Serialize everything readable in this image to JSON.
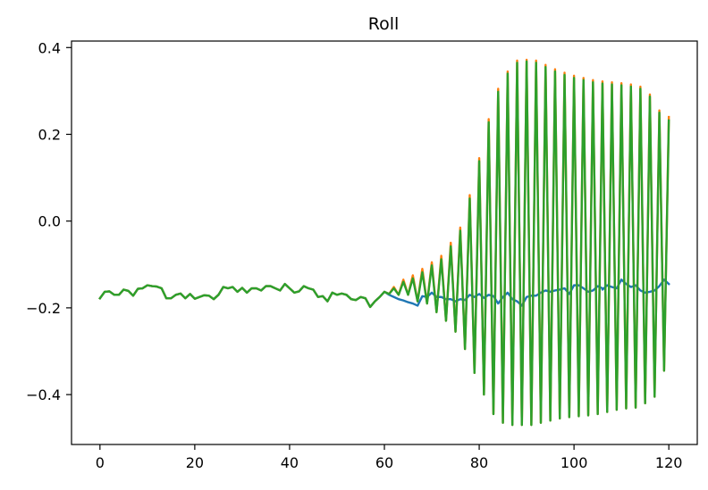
{
  "chart_data": {
    "type": "line",
    "title": "Roll",
    "xlabel": "",
    "ylabel": "",
    "xlim": [
      -6,
      126
    ],
    "ylim": [
      -0.515,
      0.415
    ],
    "xticks": [
      0,
      20,
      40,
      60,
      80,
      100,
      120
    ],
    "xtick_labels": [
      "0",
      "20",
      "40",
      "60",
      "80",
      "100",
      "120"
    ],
    "yticks": [
      -0.4,
      -0.2,
      0.0,
      0.2,
      0.4
    ],
    "ytick_labels": [
      "−0.4",
      "−0.2",
      "0.0",
      "0.2",
      "0.4"
    ],
    "grid": false,
    "legend": "none",
    "series": [
      {
        "color": "#1f77b4",
        "x": [
          0,
          1,
          2,
          3,
          4,
          5,
          6,
          7,
          8,
          9,
          10,
          11,
          12,
          13,
          14,
          15,
          16,
          17,
          18,
          19,
          20,
          21,
          22,
          23,
          24,
          25,
          26,
          27,
          28,
          29,
          30,
          31,
          32,
          33,
          34,
          35,
          36,
          37,
          38,
          39,
          40,
          41,
          42,
          43,
          44,
          45,
          46,
          47,
          48,
          49,
          50,
          51,
          52,
          53,
          54,
          55,
          56,
          57,
          58,
          59,
          60,
          61,
          62,
          63,
          64,
          65,
          66,
          67,
          68,
          69,
          70,
          71,
          72,
          73,
          74,
          75,
          76,
          77,
          78,
          79,
          80,
          81,
          82,
          83,
          84,
          85,
          86,
          87,
          88,
          89,
          90,
          91,
          92,
          93,
          94,
          95,
          96,
          97,
          98,
          99,
          100,
          101,
          102,
          103,
          104,
          105,
          106,
          106,
          107,
          108,
          109,
          110,
          111,
          112,
          113,
          114,
          115,
          116,
          117,
          118,
          119,
          120
        ],
        "y": [
          -0.178,
          -0.163,
          -0.162,
          -0.17,
          -0.17,
          -0.158,
          -0.161,
          -0.172,
          -0.156,
          -0.155,
          -0.148,
          -0.15,
          -0.151,
          -0.155,
          -0.178,
          -0.178,
          -0.17,
          -0.167,
          -0.178,
          -0.168,
          -0.179,
          -0.175,
          -0.171,
          -0.172,
          -0.18,
          -0.17,
          -0.152,
          -0.155,
          -0.152,
          -0.163,
          -0.154,
          -0.165,
          -0.155,
          -0.155,
          -0.16,
          -0.15,
          -0.15,
          -0.155,
          -0.16,
          -0.145,
          -0.155,
          -0.165,
          -0.162,
          -0.15,
          -0.155,
          -0.158,
          -0.175,
          -0.173,
          -0.185,
          -0.165,
          -0.17,
          -0.167,
          -0.17,
          -0.18,
          -0.182,
          -0.175,
          -0.178,
          -0.198,
          -0.185,
          -0.175,
          -0.163,
          -0.17,
          -0.175,
          -0.18,
          -0.183,
          -0.187,
          -0.19,
          -0.195,
          -0.173,
          -0.175,
          -0.165,
          -0.175,
          -0.175,
          -0.18,
          -0.18,
          -0.185,
          -0.18,
          -0.182,
          -0.17,
          -0.175,
          -0.168,
          -0.177,
          -0.17,
          -0.173,
          -0.19,
          -0.175,
          -0.165,
          -0.18,
          -0.185,
          -0.195,
          -0.175,
          -0.172,
          -0.172,
          -0.165,
          -0.16,
          -0.163,
          -0.16,
          -0.158,
          -0.155,
          -0.168,
          -0.148,
          -0.148,
          -0.155,
          -0.163,
          -0.16,
          -0.15,
          -0.155,
          -0.158,
          -0.148,
          -0.152,
          -0.155,
          -0.135,
          -0.145,
          -0.152,
          -0.148,
          -0.16,
          -0.165,
          -0.163,
          -0.16,
          -0.15,
          -0.135,
          -0.145
        ]
      },
      {
        "color": "#ff7f0e",
        "x": [
          0,
          1,
          2,
          3,
          4,
          5,
          6,
          7,
          8,
          9,
          10,
          11,
          12,
          13,
          14,
          15,
          16,
          17,
          18,
          19,
          20,
          21,
          22,
          23,
          24,
          25,
          26,
          27,
          28,
          29,
          30,
          31,
          32,
          33,
          34,
          35,
          36,
          37,
          38,
          39,
          40,
          41,
          42,
          43,
          44,
          45,
          46,
          47,
          48,
          49,
          50,
          51,
          52,
          53,
          54,
          55,
          56,
          57,
          58,
          59,
          60,
          61,
          62,
          63,
          64,
          65,
          66,
          67,
          68,
          69,
          70,
          71,
          72,
          73,
          74,
          75,
          76,
          77,
          78,
          79,
          80,
          81,
          82,
          83,
          84,
          85,
          86,
          87,
          88,
          89,
          90,
          91,
          92,
          93,
          94,
          95,
          96,
          97,
          98,
          99,
          100,
          101,
          102,
          103,
          104,
          105,
          106,
          107,
          108,
          109,
          110,
          111,
          112,
          113,
          114,
          115,
          116,
          117,
          118,
          119,
          120
        ],
        "y": [
          -0.178,
          -0.163,
          -0.162,
          -0.17,
          -0.17,
          -0.158,
          -0.161,
          -0.172,
          -0.156,
          -0.155,
          -0.148,
          -0.15,
          -0.151,
          -0.155,
          -0.178,
          -0.178,
          -0.17,
          -0.167,
          -0.178,
          -0.168,
          -0.179,
          -0.175,
          -0.171,
          -0.172,
          -0.18,
          -0.17,
          -0.152,
          -0.155,
          -0.152,
          -0.163,
          -0.154,
          -0.165,
          -0.155,
          -0.155,
          -0.16,
          -0.15,
          -0.15,
          -0.155,
          -0.16,
          -0.145,
          -0.155,
          -0.165,
          -0.162,
          -0.15,
          -0.155,
          -0.158,
          -0.175,
          -0.173,
          -0.185,
          -0.165,
          -0.17,
          -0.167,
          -0.17,
          -0.18,
          -0.182,
          -0.175,
          -0.178,
          -0.198,
          -0.185,
          -0.175,
          -0.163,
          -0.168,
          -0.152,
          -0.17,
          -0.135,
          -0.17,
          -0.125,
          -0.185,
          -0.11,
          -0.19,
          -0.095,
          -0.21,
          -0.08,
          -0.23,
          -0.05,
          -0.255,
          -0.015,
          -0.295,
          0.06,
          -0.35,
          0.145,
          -0.4,
          0.235,
          -0.445,
          0.305,
          -0.465,
          0.345,
          -0.47,
          0.37,
          -0.47,
          0.372,
          -0.47,
          0.37,
          -0.465,
          0.36,
          -0.46,
          0.35,
          -0.455,
          0.342,
          -0.452,
          0.335,
          -0.45,
          0.33,
          -0.448,
          0.325,
          -0.445,
          0.322,
          -0.44,
          0.32,
          -0.435,
          0.318,
          -0.432,
          0.315,
          -0.43,
          0.31,
          -0.42,
          0.292,
          -0.405,
          0.255,
          -0.345,
          0.24
        ]
      },
      {
        "color": "#2ca02c",
        "x": [
          0,
          1,
          2,
          3,
          4,
          5,
          6,
          7,
          8,
          9,
          10,
          11,
          12,
          13,
          14,
          15,
          16,
          17,
          18,
          19,
          20,
          21,
          22,
          23,
          24,
          25,
          26,
          27,
          28,
          29,
          30,
          31,
          32,
          33,
          34,
          35,
          36,
          37,
          38,
          39,
          40,
          41,
          42,
          43,
          44,
          45,
          46,
          47,
          48,
          49,
          50,
          51,
          52,
          53,
          54,
          55,
          56,
          57,
          58,
          59,
          60,
          61,
          62,
          63,
          64,
          65,
          66,
          67,
          68,
          69,
          70,
          71,
          72,
          73,
          74,
          75,
          76,
          77,
          78,
          79,
          80,
          81,
          82,
          83,
          84,
          85,
          86,
          87,
          88,
          89,
          90,
          91,
          92,
          93,
          94,
          95,
          96,
          97,
          98,
          99,
          100,
          101,
          102,
          103,
          104,
          105,
          106,
          107,
          108,
          109,
          110,
          111,
          112,
          113,
          114,
          115,
          116,
          117,
          118,
          119,
          120
        ],
        "y": [
          -0.178,
          -0.163,
          -0.162,
          -0.17,
          -0.17,
          -0.158,
          -0.161,
          -0.172,
          -0.156,
          -0.155,
          -0.148,
          -0.15,
          -0.151,
          -0.155,
          -0.178,
          -0.178,
          -0.17,
          -0.167,
          -0.178,
          -0.168,
          -0.179,
          -0.175,
          -0.171,
          -0.172,
          -0.18,
          -0.17,
          -0.152,
          -0.155,
          -0.152,
          -0.163,
          -0.154,
          -0.165,
          -0.155,
          -0.155,
          -0.16,
          -0.15,
          -0.15,
          -0.155,
          -0.16,
          -0.145,
          -0.155,
          -0.165,
          -0.162,
          -0.15,
          -0.155,
          -0.158,
          -0.175,
          -0.173,
          -0.185,
          -0.165,
          -0.17,
          -0.167,
          -0.17,
          -0.18,
          -0.182,
          -0.175,
          -0.178,
          -0.198,
          -0.185,
          -0.175,
          -0.163,
          -0.168,
          -0.155,
          -0.17,
          -0.14,
          -0.17,
          -0.132,
          -0.185,
          -0.118,
          -0.19,
          -0.102,
          -0.21,
          -0.088,
          -0.23,
          -0.058,
          -0.255,
          -0.022,
          -0.295,
          0.052,
          -0.35,
          0.138,
          -0.4,
          0.228,
          -0.445,
          0.298,
          -0.465,
          0.34,
          -0.47,
          0.365,
          -0.47,
          0.368,
          -0.47,
          0.365,
          -0.465,
          0.355,
          -0.46,
          0.345,
          -0.455,
          0.337,
          -0.452,
          0.33,
          -0.45,
          0.325,
          -0.448,
          0.32,
          -0.445,
          0.317,
          -0.44,
          0.315,
          -0.435,
          0.313,
          -0.432,
          0.31,
          -0.43,
          0.305,
          -0.42,
          0.287,
          -0.405,
          0.25,
          -0.345,
          0.232
        ]
      }
    ]
  }
}
